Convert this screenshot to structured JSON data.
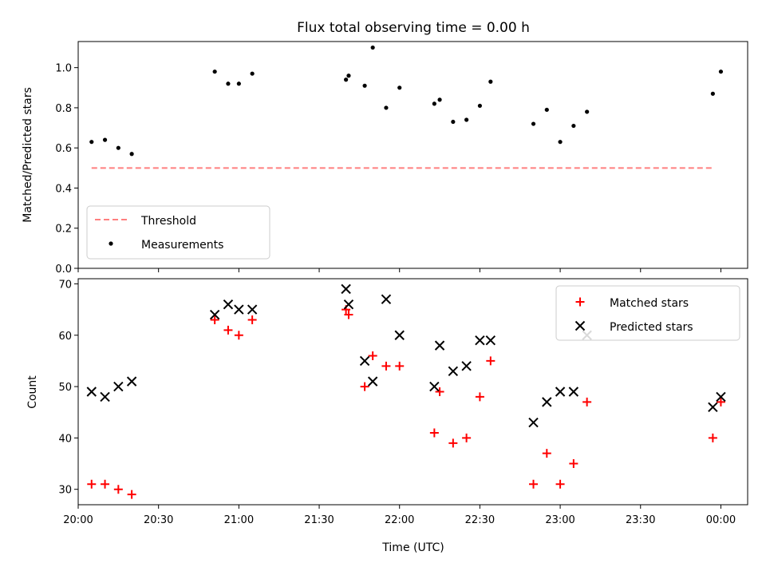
{
  "chart_data": [
    {
      "type": "scatter",
      "title": "Flux total observing time = 0.00 h",
      "xlabel": "",
      "ylabel": "Matched/Predicted stars",
      "ylim": [
        0,
        1.13
      ],
      "yticks": [
        0.0,
        0.2,
        0.4,
        0.6,
        0.8,
        1.0
      ],
      "ytick_labels": [
        "0.0",
        "0.2",
        "0.4",
        "0.6",
        "0.8",
        "1.0"
      ],
      "legend_position": "lower-left",
      "threshold": {
        "name": "Threshold",
        "value": 0.5,
        "x_start": "20:05",
        "x_end": "23:57",
        "color": "#ff7f7f"
      },
      "series": [
        {
          "name": "Measurements",
          "color": "#000000",
          "x": [
            "20:05",
            "20:10",
            "20:15",
            "20:20",
            "20:51",
            "20:56",
            "21:00",
            "21:05",
            "21:40",
            "21:41",
            "21:47",
            "21:50",
            "21:55",
            "22:00",
            "22:13",
            "22:15",
            "22:20",
            "22:25",
            "22:30",
            "22:34",
            "22:50",
            "22:55",
            "23:00",
            "23:05",
            "23:10",
            "23:57",
            "00:00"
          ],
          "y": [
            0.63,
            0.64,
            0.6,
            0.57,
            0.98,
            0.92,
            0.92,
            0.97,
            0.94,
            0.96,
            0.91,
            1.1,
            0.8,
            0.9,
            0.82,
            0.84,
            0.73,
            0.74,
            0.81,
            0.93,
            0.72,
            0.79,
            0.63,
            0.71,
            0.78,
            0.87,
            0.98
          ]
        }
      ]
    },
    {
      "type": "scatter",
      "title": "",
      "xlabel": "Time (UTC)",
      "ylabel": "Count",
      "ylim": [
        27,
        71
      ],
      "yticks": [
        30,
        40,
        50,
        60,
        70
      ],
      "ytick_labels": [
        "30",
        "40",
        "50",
        "60",
        "70"
      ],
      "legend_position": "top-right",
      "series": [
        {
          "name": "Matched stars",
          "marker": "plus",
          "color": "#ff0000",
          "x": [
            "20:05",
            "20:10",
            "20:15",
            "20:20",
            "20:51",
            "20:56",
            "21:00",
            "21:05",
            "21:40",
            "21:41",
            "21:47",
            "21:50",
            "21:55",
            "22:00",
            "22:13",
            "22:15",
            "22:20",
            "22:25",
            "22:30",
            "22:34",
            "22:50",
            "22:55",
            "23:00",
            "23:05",
            "23:10",
            "23:57",
            "00:00"
          ],
          "y": [
            31,
            31,
            30,
            29,
            63,
            61,
            60,
            63,
            65,
            64,
            50,
            56,
            54,
            54,
            41,
            49,
            39,
            40,
            48,
            55,
            31,
            37,
            31,
            35,
            47,
            40,
            47
          ]
        },
        {
          "name": "Predicted stars",
          "marker": "x",
          "color": "#000000",
          "x": [
            "20:05",
            "20:10",
            "20:15",
            "20:20",
            "20:51",
            "20:56",
            "21:00",
            "21:05",
            "21:40",
            "21:41",
            "21:47",
            "21:50",
            "21:55",
            "22:00",
            "22:13",
            "22:15",
            "22:20",
            "22:25",
            "22:30",
            "22:34",
            "22:50",
            "22:55",
            "23:00",
            "23:05",
            "23:10",
            "23:57",
            "00:00"
          ],
          "y": [
            49,
            48,
            50,
            51,
            64,
            66,
            65,
            65,
            69,
            66,
            55,
            51,
            67,
            60,
            50,
            58,
            53,
            54,
            59,
            59,
            43,
            47,
            49,
            49,
            60,
            46,
            48
          ]
        }
      ]
    }
  ],
  "x_axis": {
    "range": [
      "20:00",
      "00:10"
    ],
    "ticks": [
      "20:00",
      "20:30",
      "21:00",
      "21:30",
      "22:00",
      "22:30",
      "23:00",
      "23:30",
      "00:00"
    ]
  }
}
